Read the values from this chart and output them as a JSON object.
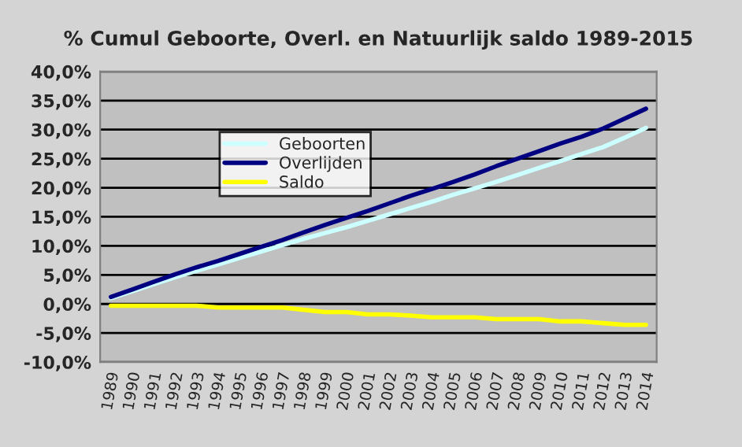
{
  "chart_data": {
    "type": "line",
    "title": "% Cumul Geboorte, Overl. en Natuurlijk saldo 1989-2015",
    "categories": [
      "1989",
      "1990",
      "1991",
      "1992",
      "1993",
      "1994",
      "1995",
      "1996",
      "1997",
      "1998",
      "1999",
      "2000",
      "2001",
      "2002",
      "2003",
      "2004",
      "2005",
      "2006",
      "2007",
      "2008",
      "2009",
      "2010",
      "2011",
      "2012",
      "2013",
      "2014"
    ],
    "series": [
      {
        "name": "Geboorten",
        "color": "#ccffff",
        "values": [
          1.0,
          2.2,
          3.4,
          4.6,
          5.7,
          6.8,
          7.9,
          9.0,
          10.1,
          11.2,
          12.2,
          13.2,
          14.3,
          15.4,
          16.5,
          17.6,
          18.8,
          19.9,
          21.0,
          22.2,
          23.4,
          24.6,
          25.8,
          27.0,
          28.6,
          30.3
        ]
      },
      {
        "name": "Overlijden",
        "color": "#000080",
        "values": [
          1.2,
          2.5,
          3.8,
          5.1,
          6.3,
          7.4,
          8.6,
          9.8,
          11.0,
          12.3,
          13.6,
          14.8,
          16.0,
          17.3,
          18.6,
          19.8,
          21.0,
          22.3,
          23.7,
          25.0,
          26.3,
          27.6,
          28.8,
          30.2,
          31.9,
          33.6
        ]
      },
      {
        "name": "Saldo",
        "color": "#ffff00",
        "values": [
          -0.3,
          -0.3,
          -0.3,
          -0.3,
          -0.3,
          -0.6,
          -0.6,
          -0.6,
          -0.6,
          -1.0,
          -1.4,
          -1.4,
          -1.8,
          -1.8,
          -2.0,
          -2.3,
          -2.3,
          -2.3,
          -2.6,
          -2.6,
          -2.6,
          -3.0,
          -3.0,
          -3.3,
          -3.6,
          -3.6
        ]
      }
    ],
    "ylim": [
      -10,
      40
    ],
    "yticks": [
      {
        "value": -10,
        "label": "-10,0%"
      },
      {
        "value": -5,
        "label": "-5,0%"
      },
      {
        "value": 0,
        "label": "0,0%"
      },
      {
        "value": 5,
        "label": "5,0%"
      },
      {
        "value": 10,
        "label": "10,0%"
      },
      {
        "value": 15,
        "label": "15,0%"
      },
      {
        "value": 20,
        "label": "20,0%"
      },
      {
        "value": 25,
        "label": "25,0%"
      },
      {
        "value": 30,
        "label": "30,0%"
      },
      {
        "value": 35,
        "label": "35,0%"
      },
      {
        "value": 40,
        "label": "40,0%"
      }
    ],
    "grid": "y",
    "legend": "top left",
    "marker": "none",
    "line_style": "solid"
  }
}
